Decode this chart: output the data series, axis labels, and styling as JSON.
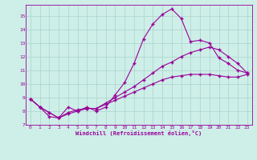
{
  "xlabel": "Windchill (Refroidissement éolien,°C)",
  "background_color": "#ceeee8",
  "grid_color": "#aad4cc",
  "line_color": "#990099",
  "xlim": [
    -0.5,
    23.5
  ],
  "ylim": [
    7.0,
    15.8
  ],
  "xticks": [
    0,
    1,
    2,
    3,
    4,
    5,
    6,
    7,
    8,
    9,
    10,
    11,
    12,
    13,
    14,
    15,
    16,
    17,
    18,
    19,
    20,
    21,
    22,
    23
  ],
  "yticks": [
    7,
    8,
    9,
    10,
    11,
    12,
    13,
    14,
    15
  ],
  "line1_x": [
    0,
    1,
    2,
    3,
    4,
    5,
    6,
    7,
    8,
    9,
    10,
    11,
    12,
    13,
    14,
    15,
    16,
    17,
    18,
    19,
    20,
    21,
    22,
    23
  ],
  "line1_y": [
    8.9,
    8.3,
    7.6,
    7.5,
    8.3,
    8.0,
    8.3,
    8.0,
    8.3,
    9.2,
    10.1,
    11.5,
    13.3,
    14.4,
    15.1,
    15.5,
    14.8,
    13.1,
    13.2,
    13.0,
    11.9,
    11.5,
    11.0,
    10.8
  ],
  "line2_x": [
    0,
    1,
    2,
    3,
    4,
    5,
    6,
    7,
    8,
    9,
    10,
    11,
    12,
    13,
    14,
    15,
    16,
    17,
    18,
    19,
    20,
    21,
    22,
    23
  ],
  "line2_y": [
    8.9,
    8.3,
    7.9,
    7.5,
    7.9,
    8.1,
    8.2,
    8.2,
    8.6,
    9.0,
    9.4,
    9.8,
    10.3,
    10.8,
    11.3,
    11.6,
    12.0,
    12.3,
    12.5,
    12.7,
    12.5,
    12.0,
    11.5,
    10.8
  ],
  "line3_x": [
    0,
    1,
    2,
    3,
    4,
    5,
    6,
    7,
    8,
    9,
    10,
    11,
    12,
    13,
    14,
    15,
    16,
    17,
    18,
    19,
    20,
    21,
    22,
    23
  ],
  "line3_y": [
    8.9,
    8.3,
    7.9,
    7.5,
    7.8,
    8.0,
    8.2,
    8.2,
    8.5,
    8.8,
    9.1,
    9.4,
    9.7,
    10.0,
    10.3,
    10.5,
    10.6,
    10.7,
    10.7,
    10.7,
    10.6,
    10.5,
    10.5,
    10.7
  ],
  "marker": "+"
}
